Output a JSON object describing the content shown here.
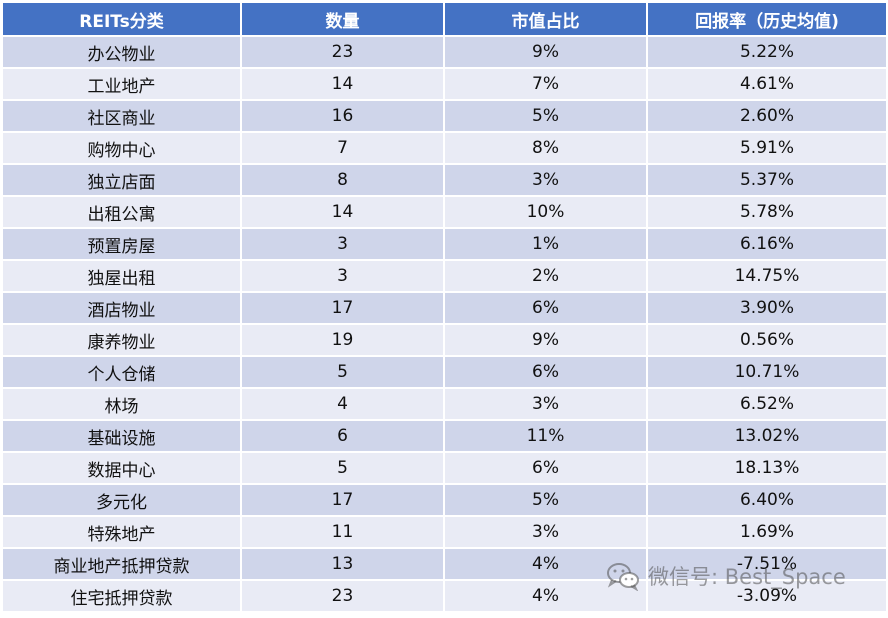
{
  "table": {
    "headers": [
      "REITs分类",
      "数量",
      "市值占比",
      "回报率（历史均值)"
    ],
    "rows": [
      [
        "办公物业",
        "23",
        "9%",
        "5.22%"
      ],
      [
        "工业地产",
        "14",
        "7%",
        "4.61%"
      ],
      [
        "社区商业",
        "16",
        "5%",
        "2.60%"
      ],
      [
        "购物中心",
        "7",
        "8%",
        "5.91%"
      ],
      [
        "独立店面",
        "8",
        "3%",
        "5.37%"
      ],
      [
        "出租公寓",
        "14",
        "10%",
        "5.78%"
      ],
      [
        "预置房屋",
        "3",
        "1%",
        "6.16%"
      ],
      [
        "独屋出租",
        "3",
        "2%",
        "14.75%"
      ],
      [
        "酒店物业",
        "17",
        "6%",
        "3.90%"
      ],
      [
        "康养物业",
        "19",
        "9%",
        "0.56%"
      ],
      [
        "个人仓储",
        "5",
        "6%",
        "10.71%"
      ],
      [
        "林场",
        "4",
        "3%",
        "6.52%"
      ],
      [
        "基础设施",
        "6",
        "11%",
        "13.02%"
      ],
      [
        "数据中心",
        "5",
        "6%",
        "18.13%"
      ],
      [
        "多元化",
        "17",
        "5%",
        "6.40%"
      ],
      [
        "特殊地产",
        "11",
        "3%",
        "1.69%"
      ],
      [
        "商业地产抵押贷款",
        "13",
        "4%",
        "-7.51%"
      ],
      [
        "住宅抵押贷款",
        "23",
        "4%",
        "-3.09%"
      ]
    ]
  },
  "watermark": {
    "text": "微信号: Best_Space",
    "icon": "wechat-icon"
  },
  "colors": {
    "header_bg": "#4472c4",
    "row_odd_bg": "#cfd5ea",
    "row_even_bg": "#e9ebf5"
  }
}
